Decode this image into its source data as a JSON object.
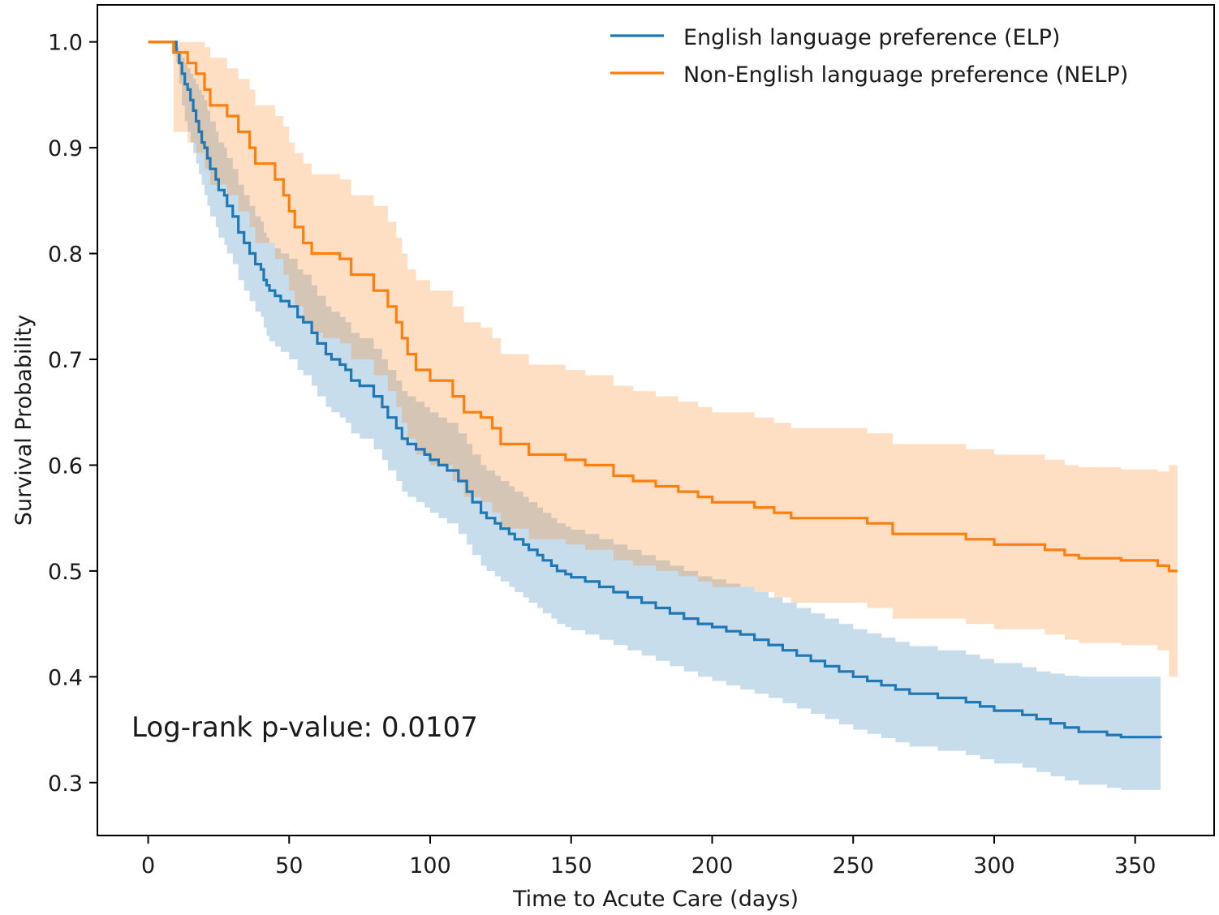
{
  "chart_data": {
    "type": "line",
    "title": "",
    "xlabel": "Time to Acute Care (days)",
    "ylabel": "Survival Probability",
    "xlim": [
      -18,
      378
    ],
    "ylim": [
      0.25,
      1.035
    ],
    "xticks": [
      0,
      50,
      100,
      150,
      200,
      250,
      300,
      350
    ],
    "yticks": [
      0.3,
      0.4,
      0.5,
      0.6,
      0.7,
      0.8,
      0.9,
      1.0
    ],
    "xtick_labels": [
      "0",
      "50",
      "100",
      "150",
      "200",
      "250",
      "300",
      "350"
    ],
    "ytick_labels": [
      "0.3",
      "0.4",
      "0.5",
      "0.6",
      "0.7",
      "0.8",
      "0.9",
      "1.0"
    ],
    "grid": false,
    "legend_position": "top-right",
    "annotation": "Log-rank p-value: 0.0107",
    "series": [
      {
        "name": "English language preference (ELP)",
        "color": "#1f77b4",
        "band_color": "#1f77b4",
        "x": [
          0,
          9,
          10,
          11,
          12,
          13,
          14,
          15,
          16,
          17,
          18,
          19,
          20,
          21,
          22,
          24,
          25,
          27,
          28,
          30,
          32,
          34,
          36,
          38,
          40,
          41,
          42,
          43,
          45,
          47,
          50,
          53,
          55,
          58,
          60,
          63,
          65,
          68,
          70,
          72,
          75,
          80,
          83,
          85,
          88,
          90,
          92,
          95,
          98,
          100,
          103,
          106,
          110,
          113,
          115,
          118,
          120,
          123,
          125,
          128,
          130,
          133,
          135,
          138,
          140,
          143,
          145,
          148,
          150,
          155,
          160,
          165,
          170,
          175,
          180,
          185,
          190,
          195,
          200,
          205,
          210,
          215,
          220,
          225,
          230,
          235,
          240,
          245,
          250,
          255,
          260,
          265,
          270,
          280,
          290,
          295,
          300,
          310,
          315,
          320,
          325,
          330,
          340,
          345,
          359
        ],
        "y": [
          1.0,
          1.0,
          0.99,
          0.98,
          0.97,
          0.96,
          0.955,
          0.945,
          0.935,
          0.925,
          0.915,
          0.905,
          0.9,
          0.89,
          0.88,
          0.87,
          0.86,
          0.855,
          0.845,
          0.835,
          0.82,
          0.81,
          0.8,
          0.79,
          0.785,
          0.775,
          0.77,
          0.765,
          0.76,
          0.755,
          0.75,
          0.74,
          0.735,
          0.725,
          0.715,
          0.705,
          0.7,
          0.695,
          0.69,
          0.68,
          0.675,
          0.665,
          0.655,
          0.645,
          0.635,
          0.625,
          0.62,
          0.615,
          0.61,
          0.605,
          0.6,
          0.595,
          0.585,
          0.575,
          0.565,
          0.555,
          0.55,
          0.545,
          0.54,
          0.535,
          0.53,
          0.525,
          0.52,
          0.515,
          0.51,
          0.505,
          0.5,
          0.497,
          0.494,
          0.49,
          0.485,
          0.48,
          0.475,
          0.47,
          0.465,
          0.46,
          0.455,
          0.45,
          0.447,
          0.443,
          0.44,
          0.435,
          0.43,
          0.425,
          0.42,
          0.415,
          0.41,
          0.405,
          0.4,
          0.396,
          0.392,
          0.388,
          0.384,
          0.38,
          0.376,
          0.372,
          0.368,
          0.364,
          0.36,
          0.356,
          0.352,
          0.348,
          0.345,
          0.343,
          0.342
        ],
        "lower": [
          1.0,
          1.0,
          0.98,
          0.96,
          0.94,
          0.925,
          0.915,
          0.905,
          0.895,
          0.885,
          0.875,
          0.865,
          0.855,
          0.845,
          0.835,
          0.825,
          0.815,
          0.808,
          0.8,
          0.79,
          0.775,
          0.765,
          0.755,
          0.745,
          0.74,
          0.73,
          0.722,
          0.717,
          0.712,
          0.707,
          0.7,
          0.69,
          0.685,
          0.675,
          0.665,
          0.655,
          0.65,
          0.645,
          0.64,
          0.63,
          0.625,
          0.615,
          0.605,
          0.595,
          0.585,
          0.575,
          0.57,
          0.565,
          0.56,
          0.555,
          0.55,
          0.545,
          0.535,
          0.525,
          0.515,
          0.505,
          0.5,
          0.495,
          0.49,
          0.485,
          0.48,
          0.475,
          0.47,
          0.465,
          0.46,
          0.455,
          0.45,
          0.447,
          0.444,
          0.44,
          0.435,
          0.43,
          0.425,
          0.42,
          0.415,
          0.41,
          0.405,
          0.4,
          0.396,
          0.392,
          0.388,
          0.384,
          0.38,
          0.375,
          0.37,
          0.365,
          0.36,
          0.355,
          0.35,
          0.346,
          0.342,
          0.338,
          0.334,
          0.33,
          0.326,
          0.322,
          0.318,
          0.314,
          0.31,
          0.306,
          0.302,
          0.298,
          0.295,
          0.293,
          0.285
        ],
        "upper": [
          1.0,
          1.0,
          0.995,
          0.99,
          0.985,
          0.98,
          0.975,
          0.97,
          0.965,
          0.96,
          0.955,
          0.95,
          0.945,
          0.935,
          0.925,
          0.915,
          0.905,
          0.9,
          0.89,
          0.88,
          0.865,
          0.855,
          0.845,
          0.835,
          0.83,
          0.82,
          0.815,
          0.81,
          0.805,
          0.8,
          0.795,
          0.785,
          0.78,
          0.77,
          0.76,
          0.75,
          0.745,
          0.74,
          0.735,
          0.725,
          0.72,
          0.71,
          0.7,
          0.69,
          0.68,
          0.67,
          0.665,
          0.66,
          0.655,
          0.65,
          0.645,
          0.64,
          0.63,
          0.62,
          0.61,
          0.6,
          0.595,
          0.59,
          0.585,
          0.58,
          0.575,
          0.57,
          0.565,
          0.56,
          0.555,
          0.55,
          0.545,
          0.542,
          0.539,
          0.535,
          0.53,
          0.525,
          0.52,
          0.515,
          0.51,
          0.505,
          0.5,
          0.495,
          0.492,
          0.488,
          0.485,
          0.48,
          0.475,
          0.47,
          0.465,
          0.46,
          0.455,
          0.45,
          0.445,
          0.441,
          0.437,
          0.433,
          0.429,
          0.425,
          0.421,
          0.417,
          0.413,
          0.409,
          0.405,
          0.403,
          0.401,
          0.4,
          0.4,
          0.4,
          0.4
        ]
      },
      {
        "name": "Non-English language preference (NELP)",
        "color": "#ff7f0e",
        "band_color": "#ff7f0e",
        "x": [
          0,
          8,
          9,
          10,
          14,
          17,
          20,
          22,
          25,
          28,
          32,
          36,
          38,
          40,
          45,
          48,
          50,
          52,
          55,
          58,
          62,
          65,
          68,
          72,
          75,
          78,
          80,
          85,
          88,
          90,
          92,
          95,
          100,
          108,
          112,
          115,
          118,
          122,
          125,
          130,
          135,
          148,
          155,
          160,
          165,
          172,
          180,
          188,
          195,
          200,
          215,
          222,
          228,
          235,
          255,
          264,
          278,
          290,
          300,
          318,
          325,
          330,
          345,
          358,
          362,
          365
        ],
        "y": [
          1.0,
          1.0,
          0.99,
          0.99,
          0.98,
          0.97,
          0.955,
          0.94,
          0.94,
          0.93,
          0.915,
          0.9,
          0.885,
          0.885,
          0.87,
          0.855,
          0.84,
          0.825,
          0.81,
          0.8,
          0.8,
          0.8,
          0.795,
          0.78,
          0.78,
          0.78,
          0.765,
          0.75,
          0.735,
          0.72,
          0.705,
          0.69,
          0.68,
          0.665,
          0.65,
          0.65,
          0.645,
          0.635,
          0.62,
          0.62,
          0.61,
          0.605,
          0.6,
          0.6,
          0.59,
          0.585,
          0.58,
          0.575,
          0.57,
          0.565,
          0.56,
          0.555,
          0.55,
          0.55,
          0.545,
          0.535,
          0.535,
          0.53,
          0.525,
          0.52,
          0.515,
          0.512,
          0.51,
          0.505,
          0.5,
          0.5
        ],
        "lower": [
          1.0,
          1.0,
          0.915,
          0.915,
          0.905,
          0.895,
          0.88,
          0.865,
          0.865,
          0.855,
          0.84,
          0.825,
          0.81,
          0.81,
          0.795,
          0.78,
          0.765,
          0.75,
          0.735,
          0.725,
          0.72,
          0.72,
          0.715,
          0.7,
          0.7,
          0.7,
          0.685,
          0.67,
          0.655,
          0.64,
          0.625,
          0.61,
          0.6,
          0.585,
          0.57,
          0.57,
          0.565,
          0.555,
          0.54,
          0.54,
          0.53,
          0.525,
          0.52,
          0.52,
          0.51,
          0.505,
          0.5,
          0.495,
          0.49,
          0.485,
          0.48,
          0.475,
          0.47,
          0.47,
          0.465,
          0.455,
          0.455,
          0.45,
          0.445,
          0.44,
          0.435,
          0.432,
          0.43,
          0.425,
          0.4,
          0.385
        ],
        "upper": [
          1.0,
          1.0,
          1.0,
          1.0,
          1.0,
          1.0,
          0.995,
          0.985,
          0.985,
          0.975,
          0.965,
          0.955,
          0.94,
          0.94,
          0.93,
          0.92,
          0.905,
          0.895,
          0.885,
          0.875,
          0.875,
          0.875,
          0.87,
          0.855,
          0.855,
          0.855,
          0.845,
          0.83,
          0.815,
          0.8,
          0.785,
          0.775,
          0.765,
          0.75,
          0.735,
          0.735,
          0.73,
          0.72,
          0.705,
          0.705,
          0.695,
          0.69,
          0.685,
          0.685,
          0.675,
          0.67,
          0.665,
          0.66,
          0.655,
          0.65,
          0.645,
          0.64,
          0.635,
          0.635,
          0.63,
          0.62,
          0.62,
          0.615,
          0.61,
          0.605,
          0.6,
          0.598,
          0.596,
          0.594,
          0.6,
          0.6
        ]
      }
    ]
  }
}
